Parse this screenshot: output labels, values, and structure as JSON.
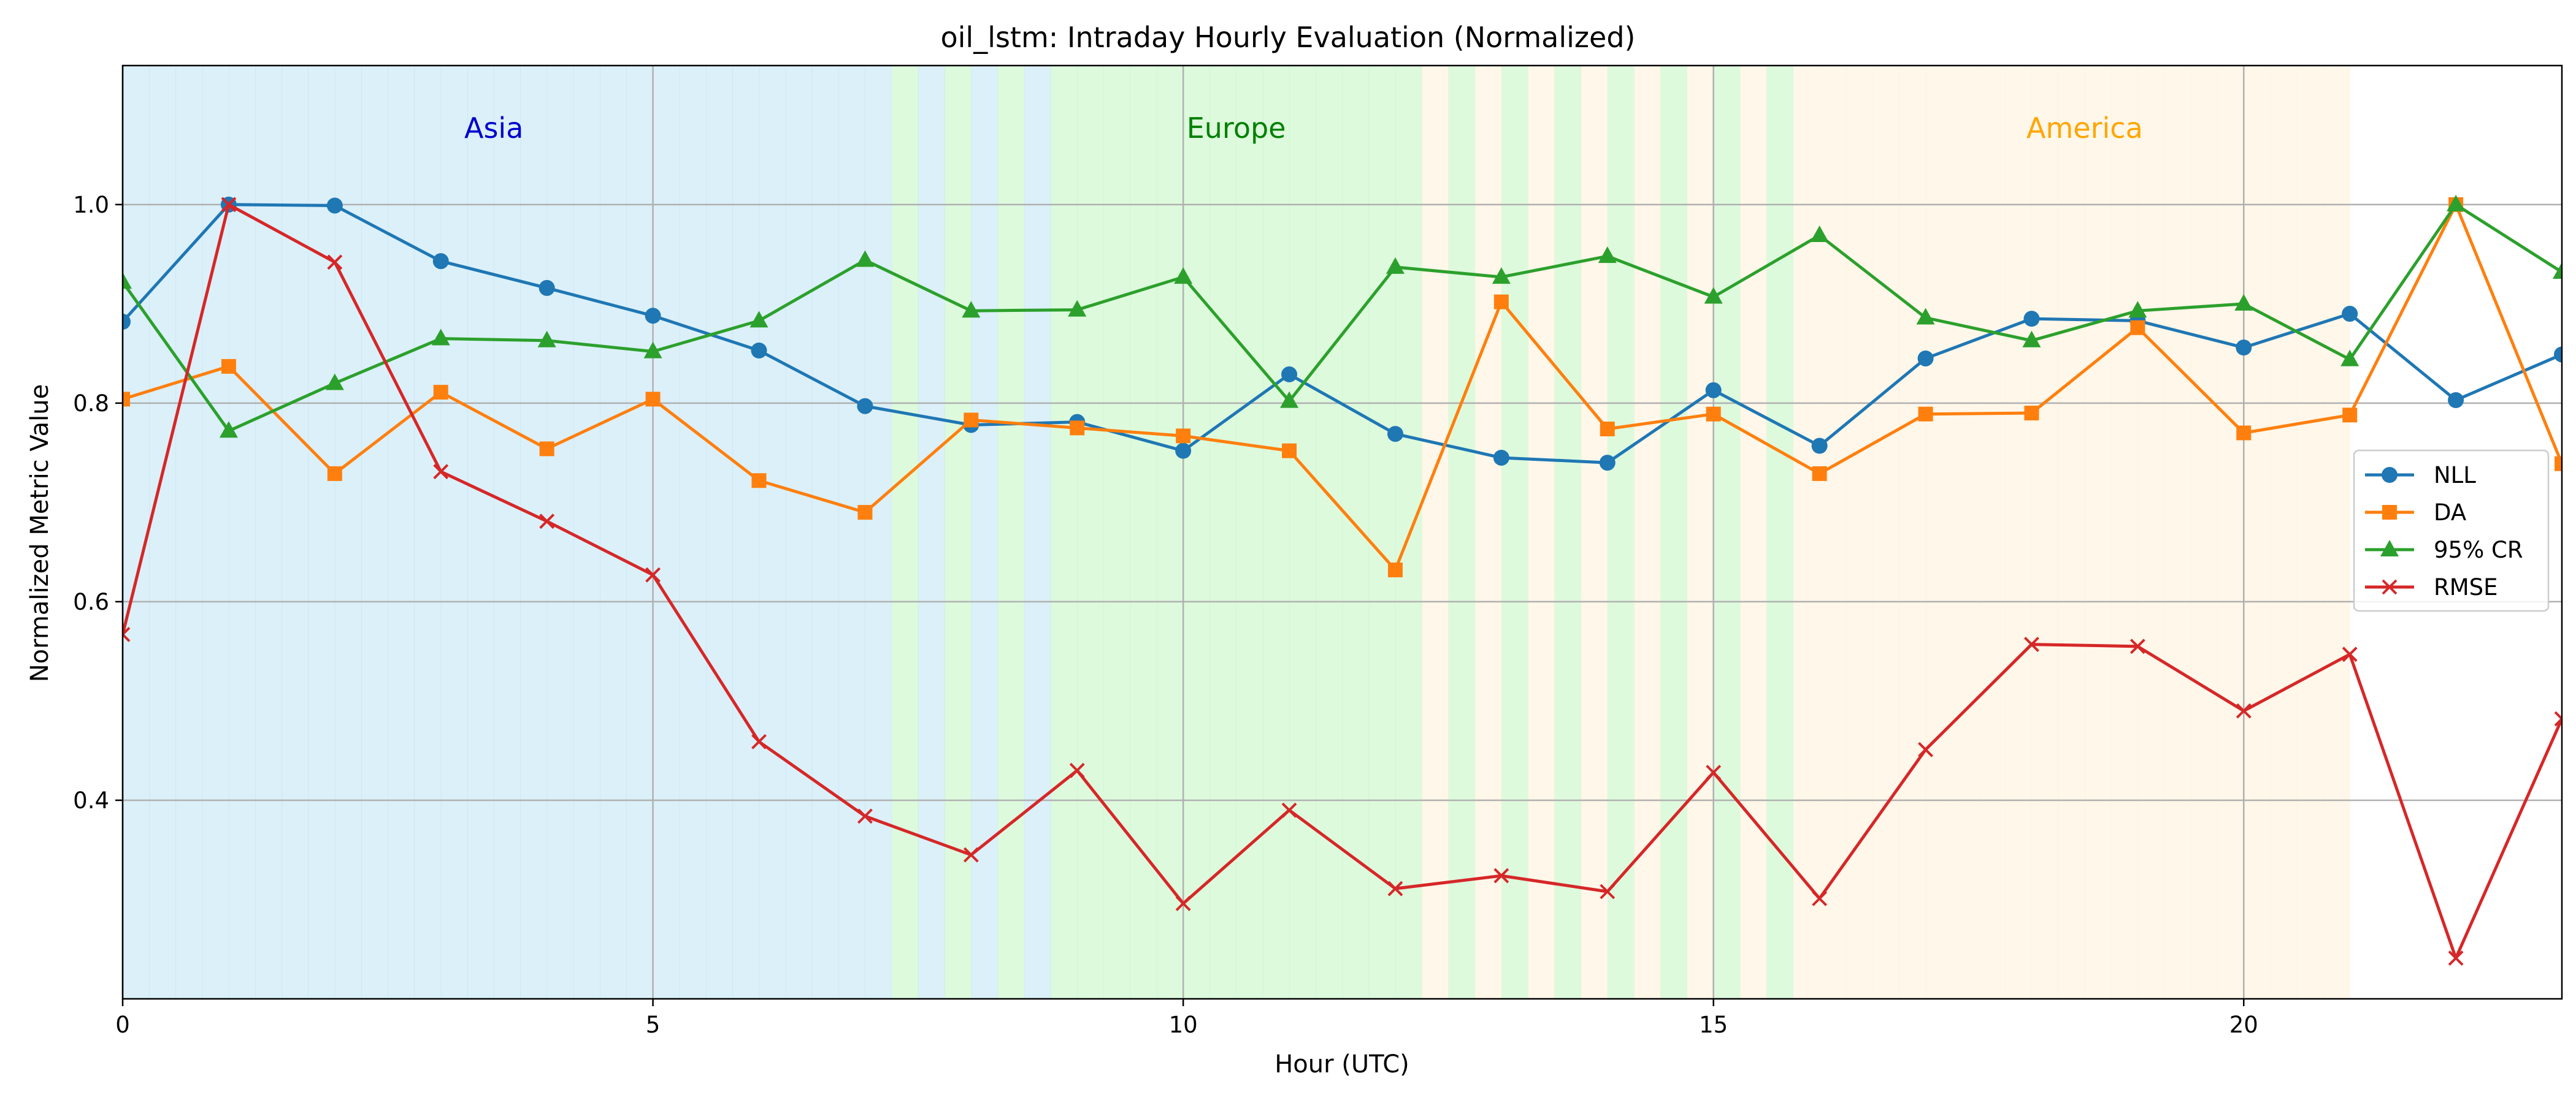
{
  "chart_data": {
    "type": "line",
    "title": "oil_lstm: Intraday Hourly Evaluation (Normalized)",
    "xlabel": "Hour (UTC)",
    "ylabel": "Normalized Metric Value",
    "xlim": [
      0,
      23
    ],
    "ylim": [
      0.2,
      1.14
    ],
    "x_ticks": [
      0,
      5,
      10,
      15,
      20
    ],
    "y_ticks": [
      0.4,
      0.6,
      0.8,
      1.0
    ],
    "y_tick_labels": [
      "0.4",
      "0.6",
      "0.8",
      "1.0"
    ],
    "grid": true,
    "legend_position": "center-right",
    "x": [
      0,
      1,
      2,
      3,
      4,
      5,
      6,
      7,
      8,
      9,
      10,
      11,
      12,
      13,
      14,
      15,
      16,
      17,
      18,
      19,
      20,
      21,
      22,
      23
    ],
    "series": [
      {
        "name": "NLL",
        "color": "#1f77b4",
        "marker": "circle",
        "values": [
          0.882,
          1.0,
          0.999,
          0.943,
          0.916,
          0.888,
          0.853,
          0.797,
          0.778,
          0.781,
          0.752,
          0.829,
          0.769,
          0.745,
          0.74,
          0.813,
          0.757,
          0.845,
          0.885,
          0.883,
          0.856,
          0.89,
          0.803,
          0.849
        ]
      },
      {
        "name": "DA",
        "color": "#ff7f0e",
        "marker": "square",
        "values": [
          0.804,
          0.837,
          0.729,
          0.811,
          0.754,
          0.804,
          0.722,
          0.69,
          0.783,
          0.775,
          0.767,
          0.752,
          0.632,
          0.902,
          0.774,
          0.789,
          0.729,
          0.789,
          0.79,
          0.876,
          0.77,
          0.788,
          1.0,
          0.739
        ]
      },
      {
        "name": "95% CR",
        "color": "#2ca02c",
        "marker": "triangle",
        "values": [
          0.922,
          0.772,
          0.82,
          0.865,
          0.863,
          0.852,
          0.883,
          0.944,
          0.893,
          0.894,
          0.927,
          0.802,
          0.937,
          0.927,
          0.948,
          0.907,
          0.969,
          0.886,
          0.863,
          0.893,
          0.9,
          0.844,
          1.0,
          0.932
        ]
      },
      {
        "name": "RMSE",
        "color": "#d62728",
        "marker": "x",
        "values": [
          0.567,
          1.0,
          0.942,
          0.731,
          0.681,
          0.627,
          0.459,
          0.384,
          0.345,
          0.43,
          0.296,
          0.39,
          0.311,
          0.324,
          0.308,
          0.428,
          0.301,
          0.451,
          0.557,
          0.555,
          0.49,
          0.547,
          0.241,
          0.482
        ]
      }
    ],
    "sessions": [
      {
        "label": "Asia",
        "color": "#0000cd",
        "fill": "#87ceeb",
        "start": 0,
        "end": 9,
        "label_x": 3.5
      },
      {
        "label": "Europe",
        "color": "#008000",
        "fill": "#90ee90",
        "start": 7,
        "end": 16,
        "label_x": 10.5
      },
      {
        "label": "America",
        "color": "#ffa500",
        "fill": "#ffe4b5",
        "start": 12,
        "end": 21,
        "label_x": 18.5
      }
    ]
  }
}
